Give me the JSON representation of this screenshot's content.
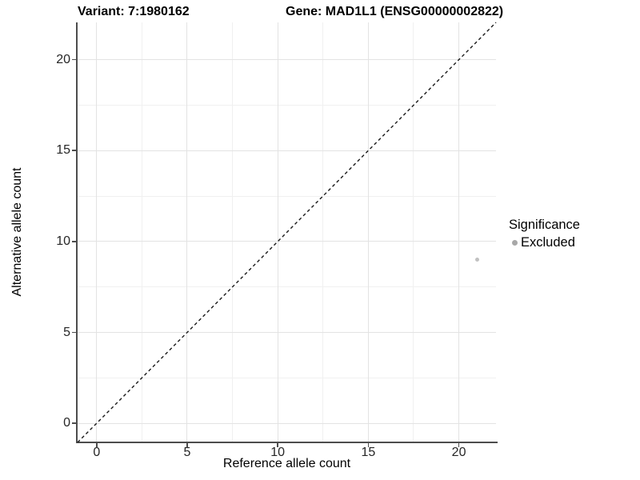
{
  "chart_data": {
    "type": "scatter",
    "title_left": "Variant: 7:1980162",
    "title_right": "Gene: MAD1L1 (ENSG00000002822)",
    "xlabel": "Reference allele count",
    "ylabel": "Alternative allele count",
    "xlim": [
      -1.05,
      22.05
    ],
    "ylim": [
      -1.05,
      22.05
    ],
    "x_ticks": [
      0,
      5,
      10,
      15,
      20
    ],
    "y_ticks": [
      0,
      5,
      10,
      15,
      20
    ],
    "x_minor_ticks": [
      2.5,
      7.5,
      12.5,
      17.5
    ],
    "y_minor_ticks": [
      2.5,
      7.5,
      12.5,
      17.5
    ],
    "grid": "major and minor, light gray on white",
    "series": [
      {
        "name": "Excluded",
        "marker": "circle",
        "color": "#c1c1c1",
        "points": [
          {
            "x": 21,
            "y": 9
          }
        ]
      }
    ],
    "identity_line": {
      "equation": "y = x",
      "style": "dashed",
      "color": "#1a1a1a"
    },
    "legend": {
      "title": "Significance",
      "position": "right",
      "entries": [
        {
          "label": "Excluded",
          "marker_color": "#a8a8a8"
        }
      ]
    }
  },
  "colors": {
    "background": "#ffffff",
    "axis_line": "#4d4d4d",
    "tick_label": "#262626",
    "grid_major": "#e3e3e3",
    "grid_minor": "#f0f0f0"
  }
}
